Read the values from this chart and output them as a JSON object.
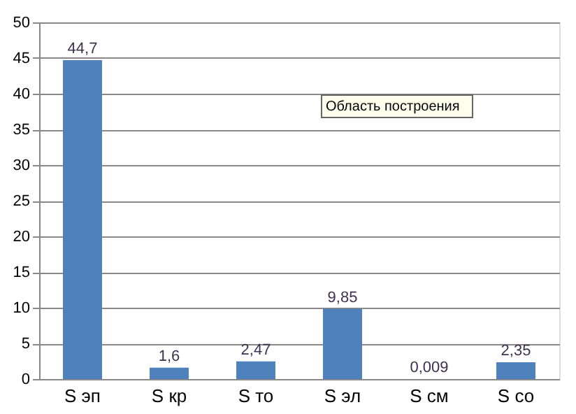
{
  "chart_data": {
    "type": "bar",
    "categories": [
      "S эп",
      "S кр",
      "S то",
      "S эл",
      "S см",
      "S со"
    ],
    "values": [
      44.7,
      1.6,
      2.47,
      9.85,
      0.009,
      2.35
    ],
    "value_labels": [
      "44,7",
      "1,6",
      "2,47",
      "9,85",
      "0,009",
      "2,35"
    ],
    "color": "#4f81bd",
    "ylim": [
      0,
      50
    ],
    "yticks": [
      0,
      5,
      10,
      15,
      20,
      25,
      30,
      35,
      40,
      45,
      50
    ],
    "grid": "y",
    "annotations": [
      "Область построения"
    ]
  }
}
